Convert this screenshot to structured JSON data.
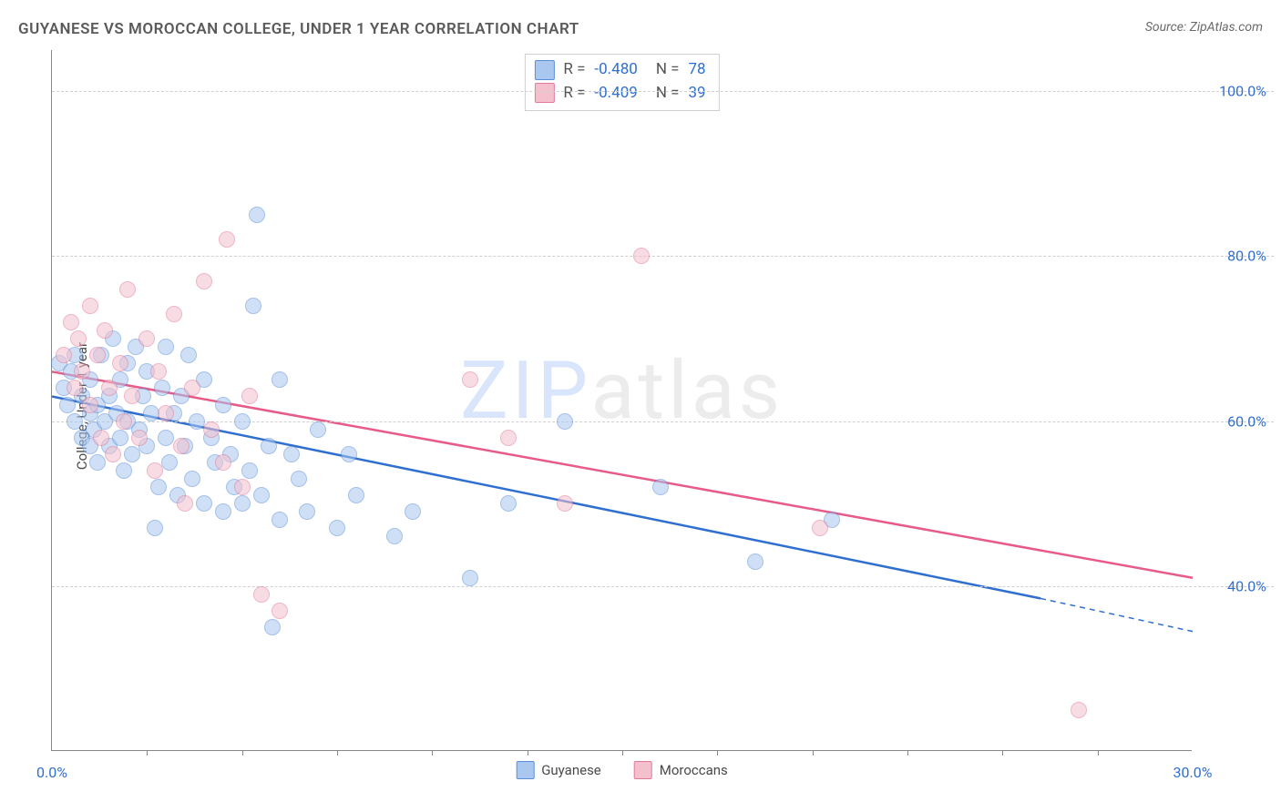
{
  "title": "GUYANESE VS MOROCCAN COLLEGE, UNDER 1 YEAR CORRELATION CHART",
  "source": "Source: ZipAtlas.com",
  "watermark_a": "ZIP",
  "watermark_b": "atlas",
  "y_axis": {
    "label": "College, Under 1 year"
  },
  "chart": {
    "type": "scatter",
    "background_color": "#ffffff",
    "grid_color": "#d0d0d0",
    "axis_color": "#888888",
    "tick_label_color": "#2f6fd0",
    "label_fontsize": 15,
    "tick_fontsize": 16,
    "title_fontsize": 17,
    "xlim": [
      0,
      30
    ],
    "ylim": [
      20,
      105
    ],
    "y_gridlines": [
      40,
      60,
      80,
      100
    ],
    "y_tick_labels": [
      "40.0%",
      "60.0%",
      "80.0%",
      "100.0%"
    ],
    "x_minor_ticks": [
      2.5,
      5,
      7.5,
      10,
      12.5,
      15,
      17.5,
      20,
      22.5,
      25,
      27.5
    ],
    "x_tick_labels": [
      {
        "pos": 0,
        "text": "0.0%"
      },
      {
        "pos": 30,
        "text": "30.0%"
      }
    ],
    "marker_radius": 9,
    "marker_opacity": 0.55,
    "marker_stroke_width": 1.2,
    "line_width": 2.5,
    "series": [
      {
        "name": "Guyanese",
        "fill": "#a9c7ef",
        "stroke": "#5a8ed8",
        "line_color": "#2f6fd0",
        "r_value": "-0.480",
        "n_value": "78",
        "trend": {
          "x1": 0,
          "y1": 63,
          "x2": 26,
          "y2": 38.5,
          "x2_dash": 30,
          "y2_dash": 34.5
        },
        "points": [
          [
            0.2,
            67
          ],
          [
            0.3,
            64
          ],
          [
            0.4,
            62
          ],
          [
            0.5,
            66
          ],
          [
            0.6,
            60
          ],
          [
            0.6,
            68
          ],
          [
            0.8,
            58
          ],
          [
            0.8,
            63
          ],
          [
            1.0,
            57
          ],
          [
            1.0,
            61
          ],
          [
            1.0,
            65
          ],
          [
            1.1,
            59
          ],
          [
            1.2,
            55
          ],
          [
            1.2,
            62
          ],
          [
            1.3,
            68
          ],
          [
            1.4,
            60
          ],
          [
            1.5,
            57
          ],
          [
            1.5,
            63
          ],
          [
            1.6,
            70
          ],
          [
            1.7,
            61
          ],
          [
            1.8,
            58
          ],
          [
            1.8,
            65
          ],
          [
            1.9,
            54
          ],
          [
            2.0,
            60
          ],
          [
            2.0,
            67
          ],
          [
            2.1,
            56
          ],
          [
            2.2,
            69
          ],
          [
            2.3,
            59
          ],
          [
            2.4,
            63
          ],
          [
            2.5,
            57
          ],
          [
            2.5,
            66
          ],
          [
            2.6,
            61
          ],
          [
            2.7,
            47
          ],
          [
            2.8,
            52
          ],
          [
            2.9,
            64
          ],
          [
            3.0,
            58
          ],
          [
            3.0,
            69
          ],
          [
            3.1,
            55
          ],
          [
            3.2,
            61
          ],
          [
            3.3,
            51
          ],
          [
            3.4,
            63
          ],
          [
            3.5,
            57
          ],
          [
            3.6,
            68
          ],
          [
            3.7,
            53
          ],
          [
            3.8,
            60
          ],
          [
            4.0,
            50
          ],
          [
            4.0,
            65
          ],
          [
            4.2,
            58
          ],
          [
            4.3,
            55
          ],
          [
            4.5,
            49
          ],
          [
            4.5,
            62
          ],
          [
            4.7,
            56
          ],
          [
            4.8,
            52
          ],
          [
            5.0,
            50
          ],
          [
            5.0,
            60
          ],
          [
            5.2,
            54
          ],
          [
            5.3,
            74
          ],
          [
            5.4,
            85
          ],
          [
            5.5,
            51
          ],
          [
            5.7,
            57
          ],
          [
            5.8,
            35
          ],
          [
            6.0,
            48
          ],
          [
            6.0,
            65
          ],
          [
            6.3,
            56
          ],
          [
            6.5,
            53
          ],
          [
            6.7,
            49
          ],
          [
            7.0,
            59
          ],
          [
            7.5,
            47
          ],
          [
            7.8,
            56
          ],
          [
            8.0,
            51
          ],
          [
            9.0,
            46
          ],
          [
            9.5,
            49
          ],
          [
            11.0,
            41
          ],
          [
            12.0,
            50
          ],
          [
            13.5,
            60
          ],
          [
            16.0,
            52
          ],
          [
            18.5,
            43
          ],
          [
            20.5,
            48
          ]
        ]
      },
      {
        "name": "Moroccans",
        "fill": "#f4c0cd",
        "stroke": "#e07a9a",
        "line_color": "#e85a88",
        "r_value": "-0.409",
        "n_value": "39",
        "trend": {
          "x1": 0,
          "y1": 66,
          "x2": 30,
          "y2": 41
        },
        "points": [
          [
            0.3,
            68
          ],
          [
            0.5,
            72
          ],
          [
            0.6,
            64
          ],
          [
            0.7,
            70
          ],
          [
            0.8,
            66
          ],
          [
            1.0,
            74
          ],
          [
            1.0,
            62
          ],
          [
            1.2,
            68
          ],
          [
            1.3,
            58
          ],
          [
            1.4,
            71
          ],
          [
            1.5,
            64
          ],
          [
            1.6,
            56
          ],
          [
            1.8,
            67
          ],
          [
            1.9,
            60
          ],
          [
            2.0,
            76
          ],
          [
            2.1,
            63
          ],
          [
            2.3,
            58
          ],
          [
            2.5,
            70
          ],
          [
            2.7,
            54
          ],
          [
            2.8,
            66
          ],
          [
            3.0,
            61
          ],
          [
            3.2,
            73
          ],
          [
            3.4,
            57
          ],
          [
            3.5,
            50
          ],
          [
            3.7,
            64
          ],
          [
            4.0,
            77
          ],
          [
            4.2,
            59
          ],
          [
            4.5,
            55
          ],
          [
            4.6,
            82
          ],
          [
            5.0,
            52
          ],
          [
            5.2,
            63
          ],
          [
            5.5,
            39
          ],
          [
            6.0,
            37
          ],
          [
            11.0,
            65
          ],
          [
            12.0,
            58
          ],
          [
            13.5,
            50
          ],
          [
            15.5,
            80
          ],
          [
            27.0,
            25
          ],
          [
            20.2,
            47
          ]
        ]
      }
    ]
  },
  "x_legend": {
    "items": [
      {
        "label": "Guyanese",
        "fill": "#a9c7ef",
        "stroke": "#5a8ed8"
      },
      {
        "label": "Moroccans",
        "fill": "#f4c0cd",
        "stroke": "#e07a9a"
      }
    ]
  }
}
